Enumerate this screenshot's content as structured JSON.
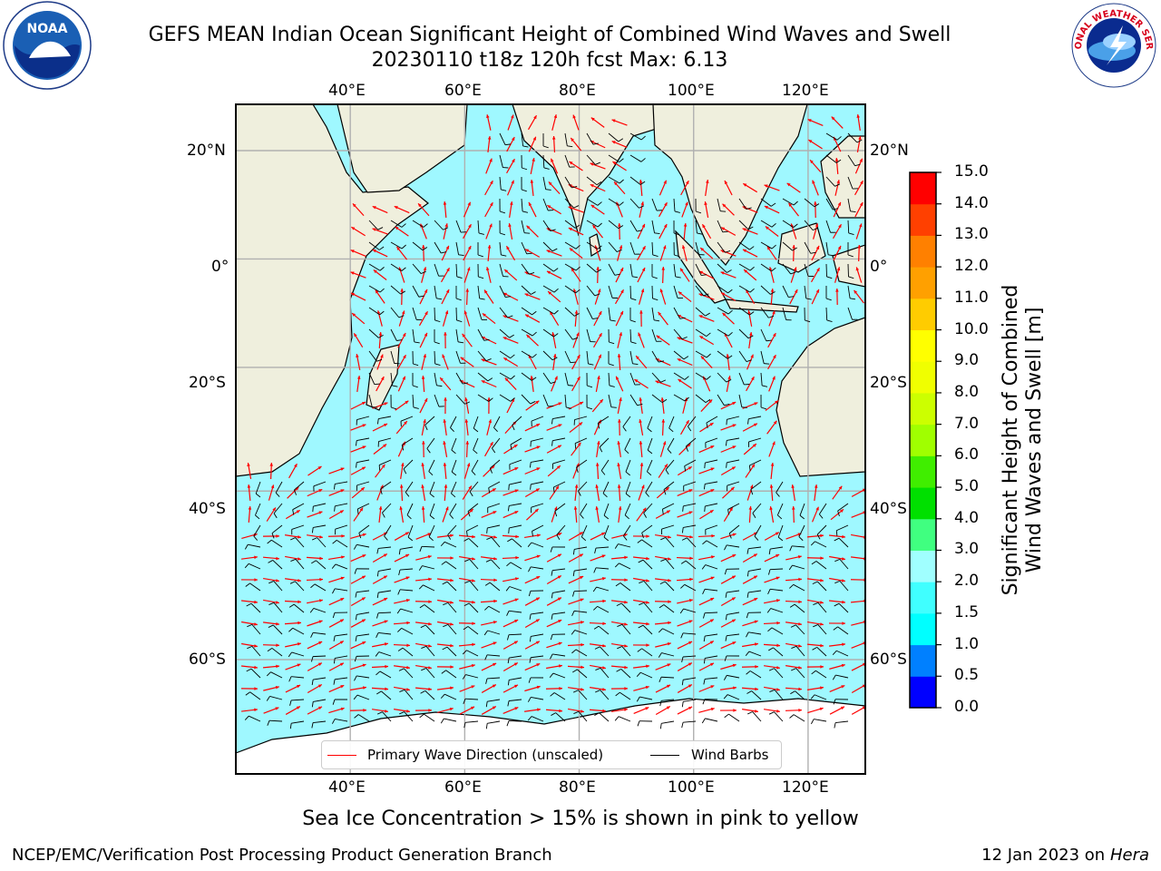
{
  "title": {
    "line1": "GEFS MEAN Indian Ocean Significant Height of Combined Wind Waves and Swell",
    "line2": "20230110 t18z 120h fcst   Max: 6.13"
  },
  "logos": {
    "noaa": {
      "text": "NOAA",
      "icon": "noaa-logo"
    },
    "nws": {
      "text": "NATIONAL WEATHER SERVICE",
      "icon": "nws-logo"
    }
  },
  "map": {
    "lon_range": [
      20,
      130
    ],
    "lat_range": [
      -74,
      27
    ],
    "lon_ticks": [
      "40°E",
      "60°E",
      "80°E",
      "100°E",
      "120°E"
    ],
    "lat_ticks_left": [
      "20°N",
      "0°",
      "20°S",
      "40°S",
      "60°S"
    ],
    "lat_ticks_right": [
      "20°N",
      "0°",
      "20°S",
      "40°S",
      "60°S"
    ],
    "grid": true,
    "colors": {
      "land": "#efefdd",
      "ice": "#ffffff",
      "gridline": "#b0b0b0",
      "wave_arrow": "#ff0000",
      "wind_barb": "#000000"
    }
  },
  "legend": {
    "placement": "bottom-center",
    "items": [
      {
        "label": "Primary Wave Direction (unscaled)",
        "color": "#ff0000"
      },
      {
        "label": "Wind Barbs",
        "color": "#000000"
      }
    ]
  },
  "colorbar": {
    "label_line1": "Significant Height of Combined",
    "label_line2": "Wind Waves and Swell [m]",
    "ticks": [
      "0.0",
      "0.5",
      "1.0",
      "1.5",
      "2.0",
      "3.0",
      "4.0",
      "5.0",
      "6.0",
      "7.0",
      "8.0",
      "9.0",
      "10.0",
      "11.0",
      "12.0",
      "13.0",
      "14.0",
      "15.0"
    ],
    "colors": [
      "#0000ff",
      "#0080ff",
      "#00ffff",
      "#40ffff",
      "#a0ffff",
      "#40ff80",
      "#00e000",
      "#40ee00",
      "#a0ff00",
      "#ccff00",
      "#f0ff00",
      "#ffff00",
      "#ffcc00",
      "#ffa000",
      "#ff8000",
      "#ff4000",
      "#ff0000"
    ]
  },
  "caption": "Sea Ice Concentration > 15% is shown in pink to yellow",
  "footer": {
    "left": "NCEP/EMC/Verification Post Processing Product Generation Branch",
    "right_date": "12 Jan 2023 on ",
    "right_host": "Hera"
  }
}
